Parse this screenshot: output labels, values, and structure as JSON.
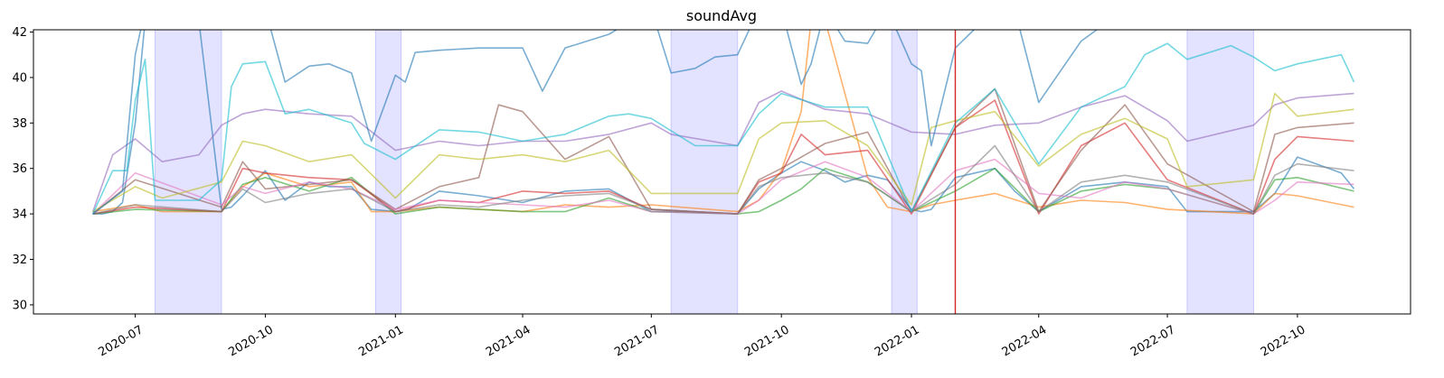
{
  "chart_data": {
    "type": "line",
    "title": "soundAvg",
    "xlabel": "",
    "ylabel": "",
    "xlim": [
      "2020-04-20",
      "2022-12-20"
    ],
    "ylim": [
      29.6,
      42.1
    ],
    "y_ticks": [
      30,
      32,
      34,
      36,
      38,
      40,
      42
    ],
    "x_ticks": [
      "2020-07",
      "2020-10",
      "2021-01",
      "2021-04",
      "2021-07",
      "2021-10",
      "2022-01",
      "2022-04",
      "2022-07",
      "2022-10"
    ],
    "grid": false,
    "legend": "none",
    "shaded_periods": [
      [
        "2020-07-15",
        "2020-08-31"
      ],
      [
        "2020-12-18",
        "2021-01-05"
      ],
      [
        "2021-07-15",
        "2021-08-31"
      ],
      [
        "2021-12-18",
        "2022-01-05"
      ],
      [
        "2022-07-15",
        "2022-08-31"
      ]
    ],
    "vertical_line": "2022-02-01",
    "colors": {
      "shade": "#b8b8ff",
      "vline": "#d62728",
      "axes": "#000000"
    },
    "series": [
      {
        "color": "#1f77b4",
        "dates": [
          "2020-06-01",
          "2020-06-08",
          "2020-06-15",
          "2020-06-22",
          "2020-07-01",
          "2020-07-08",
          "2020-07-20",
          "2020-08-15",
          "2020-08-31",
          "2020-09-07",
          "2020-09-15",
          "2020-10-01",
          "2020-10-15",
          "2020-11-01",
          "2020-11-15",
          "2020-12-01",
          "2020-12-15",
          "2021-01-01",
          "2021-01-10",
          "2021-02-01",
          "2021-03-01",
          "2021-04-01",
          "2021-05-01",
          "2021-06-01",
          "2021-07-01",
          "2021-07-15",
          "2021-08-31",
          "2021-09-15",
          "2021-10-01",
          "2021-10-15",
          "2021-11-01",
          "2021-11-15",
          "2021-12-01",
          "2021-12-15",
          "2022-01-01",
          "2022-01-08",
          "2022-01-15",
          "2022-02-01",
          "2022-03-01",
          "2022-03-15",
          "2022-04-01",
          "2022-05-01",
          "2022-06-01",
          "2022-07-01",
          "2022-07-15",
          "2022-08-31",
          "2022-09-15",
          "2022-10-01",
          "2022-11-01",
          "2022-11-10"
        ],
        "values": [
          34.0,
          34.0,
          34.1,
          34.5,
          38.0,
          42.5,
          42.5,
          42.5,
          34.2,
          34.3,
          34.8,
          35.9,
          34.6,
          35.4,
          35.2,
          35.2,
          34.2,
          34.1,
          34.2,
          35.0,
          34.8,
          34.5,
          35.0,
          35.1,
          34.1,
          34.1,
          34.0,
          35.1,
          35.8,
          36.3,
          35.9,
          35.4,
          35.7,
          35.5,
          34.2,
          34.1,
          34.2,
          35.6,
          36.0,
          35.0,
          34.1,
          35.2,
          35.4,
          35.2,
          34.1,
          34.1,
          34.9,
          36.5,
          35.8,
          35.1
        ]
      },
      {
        "color": "#ff7f0e",
        "dates": [
          "2020-06-01",
          "2020-07-01",
          "2020-07-20",
          "2020-08-31",
          "2020-09-15",
          "2020-10-01",
          "2020-11-01",
          "2020-12-01",
          "2020-12-15",
          "2021-01-01",
          "2021-02-01",
          "2021-03-01",
          "2021-04-01",
          "2021-05-01",
          "2021-06-01",
          "2021-07-01",
          "2021-08-31",
          "2021-09-15",
          "2021-10-01",
          "2021-10-15",
          "2021-10-22",
          "2021-11-01",
          "2021-12-01",
          "2021-12-15",
          "2022-01-01",
          "2022-01-15",
          "2022-02-01",
          "2022-03-01",
          "2022-04-01",
          "2022-05-01",
          "2022-06-01",
          "2022-07-01",
          "2022-08-31",
          "2022-09-15",
          "2022-10-01",
          "2022-11-10"
        ],
        "values": [
          34.1,
          34.4,
          34.1,
          34.1,
          35.2,
          35.8,
          35.2,
          35.4,
          34.1,
          34.1,
          34.3,
          34.2,
          34.1,
          34.4,
          34.3,
          34.4,
          34.1,
          34.6,
          35.9,
          38.5,
          42.5,
          42.5,
          35.6,
          34.3,
          34.1,
          34.4,
          34.6,
          34.9,
          34.3,
          34.6,
          34.5,
          34.2,
          34.0,
          34.9,
          34.8,
          34.3
        ]
      },
      {
        "color": "#2ca02c",
        "dates": [
          "2020-06-01",
          "2020-07-01",
          "2020-08-31",
          "2020-09-15",
          "2020-10-01",
          "2020-11-01",
          "2020-12-01",
          "2021-01-01",
          "2021-02-01",
          "2021-03-01",
          "2021-04-01",
          "2021-05-01",
          "2021-06-01",
          "2021-07-01",
          "2021-08-31",
          "2021-09-15",
          "2021-10-01",
          "2021-10-15",
          "2021-11-01",
          "2021-12-01",
          "2022-01-01",
          "2022-02-01",
          "2022-03-01",
          "2022-04-01",
          "2022-05-01",
          "2022-06-01",
          "2022-07-01",
          "2022-08-31",
          "2022-09-15",
          "2022-10-01",
          "2022-11-10"
        ],
        "values": [
          34.0,
          34.2,
          34.1,
          35.3,
          35.6,
          35.0,
          35.6,
          34.0,
          34.3,
          34.2,
          34.1,
          34.1,
          34.7,
          34.1,
          34.0,
          34.1,
          34.6,
          35.1,
          36.0,
          35.4,
          34.1,
          35.0,
          36.0,
          34.1,
          35.0,
          35.3,
          35.1,
          34.0,
          35.5,
          35.6,
          35.0
        ]
      },
      {
        "color": "#d62728",
        "dates": [
          "2020-06-01",
          "2020-07-01",
          "2020-08-31",
          "2020-09-15",
          "2020-10-01",
          "2020-11-01",
          "2020-12-01",
          "2021-01-01",
          "2021-02-01",
          "2021-03-01",
          "2021-04-01",
          "2021-05-01",
          "2021-06-01",
          "2021-07-01",
          "2021-08-31",
          "2021-09-15",
          "2021-10-01",
          "2021-10-15",
          "2021-11-01",
          "2021-12-01",
          "2022-01-01",
          "2022-02-01",
          "2022-03-01",
          "2022-04-01",
          "2022-05-01",
          "2022-06-01",
          "2022-07-01",
          "2022-08-31",
          "2022-09-15",
          "2022-10-01",
          "2022-11-10"
        ],
        "values": [
          34.0,
          34.3,
          34.1,
          36.0,
          35.8,
          35.6,
          35.5,
          34.1,
          34.6,
          34.5,
          35.0,
          34.9,
          35.0,
          34.2,
          34.0,
          35.4,
          35.8,
          37.5,
          36.6,
          36.8,
          34.0,
          37.8,
          39.0,
          34.0,
          37.0,
          38.0,
          35.5,
          34.0,
          36.4,
          37.4,
          37.2
        ]
      },
      {
        "color": "#9467bd",
        "dates": [
          "2020-06-01",
          "2020-06-15",
          "2020-07-01",
          "2020-07-20",
          "2020-08-15",
          "2020-08-31",
          "2020-09-15",
          "2020-10-01",
          "2020-11-01",
          "2020-12-01",
          "2021-01-01",
          "2021-02-01",
          "2021-03-01",
          "2021-04-01",
          "2021-05-01",
          "2021-06-01",
          "2021-07-01",
          "2021-07-15",
          "2021-08-31",
          "2021-09-15",
          "2021-10-01",
          "2021-11-01",
          "2021-12-01",
          "2022-01-01",
          "2022-02-01",
          "2022-03-01",
          "2022-04-01",
          "2022-05-01",
          "2022-06-01",
          "2022-07-01",
          "2022-07-15",
          "2022-08-31",
          "2022-09-15",
          "2022-10-01",
          "2022-11-10"
        ],
        "values": [
          34.1,
          36.6,
          37.3,
          36.3,
          36.6,
          37.9,
          38.4,
          38.6,
          38.4,
          38.3,
          36.8,
          37.2,
          37.0,
          37.2,
          37.2,
          37.5,
          38.0,
          37.5,
          37.0,
          38.9,
          39.4,
          38.6,
          38.4,
          37.6,
          37.5,
          37.9,
          38.0,
          38.7,
          39.2,
          38.1,
          37.2,
          37.9,
          38.8,
          39.1,
          39.3
        ]
      },
      {
        "color": "#8c564b",
        "dates": [
          "2020-06-01",
          "2020-07-01",
          "2020-08-31",
          "2020-09-15",
          "2020-10-01",
          "2020-11-01",
          "2020-12-01",
          "2021-01-01",
          "2021-02-01",
          "2021-03-01",
          "2021-03-15",
          "2021-04-01",
          "2021-05-01",
          "2021-06-01",
          "2021-07-01",
          "2021-08-31",
          "2021-09-15",
          "2021-10-01",
          "2021-11-01",
          "2021-12-01",
          "2022-01-01",
          "2022-02-01",
          "2022-03-01",
          "2022-04-01",
          "2022-05-01",
          "2022-06-01",
          "2022-07-01",
          "2022-08-31",
          "2022-09-15",
          "2022-10-01",
          "2022-11-10"
        ],
        "values": [
          34.0,
          35.5,
          34.3,
          36.3,
          35.1,
          35.3,
          35.5,
          34.2,
          35.2,
          35.6,
          38.8,
          38.5,
          36.4,
          37.4,
          34.2,
          34.0,
          35.5,
          36.0,
          37.1,
          37.6,
          34.1,
          37.8,
          39.5,
          34.1,
          36.8,
          38.8,
          36.2,
          34.1,
          37.5,
          37.8,
          38.0
        ]
      },
      {
        "color": "#e377c2",
        "dates": [
          "2020-06-01",
          "2020-07-01",
          "2020-08-31",
          "2020-09-15",
          "2020-10-01",
          "2020-11-01",
          "2020-12-01",
          "2021-01-01",
          "2021-02-01",
          "2021-03-01",
          "2021-04-01",
          "2021-05-01",
          "2021-06-01",
          "2021-07-01",
          "2021-08-31",
          "2021-09-15",
          "2021-10-01",
          "2021-11-01",
          "2021-12-01",
          "2022-01-01",
          "2022-02-01",
          "2022-03-01",
          "2022-04-01",
          "2022-05-01",
          "2022-06-01",
          "2022-07-01",
          "2022-08-31",
          "2022-09-15",
          "2022-10-01",
          "2022-11-10"
        ],
        "values": [
          34.0,
          35.8,
          34.4,
          35.2,
          34.9,
          35.4,
          35.1,
          34.2,
          34.6,
          34.5,
          34.4,
          34.3,
          34.6,
          34.1,
          34.0,
          34.6,
          35.5,
          36.3,
          35.6,
          34.1,
          35.9,
          36.4,
          34.9,
          34.7,
          35.4,
          35.1,
          34.0,
          34.6,
          35.4,
          35.3
        ]
      },
      {
        "color": "#7f7f7f",
        "dates": [
          "2020-06-01",
          "2020-07-01",
          "2020-08-31",
          "2020-09-15",
          "2020-10-01",
          "2020-11-01",
          "2020-12-01",
          "2021-01-01",
          "2021-02-01",
          "2021-03-01",
          "2021-04-01",
          "2021-05-01",
          "2021-06-01",
          "2021-07-01",
          "2021-08-31",
          "2021-09-15",
          "2021-10-01",
          "2021-11-01",
          "2021-12-01",
          "2022-01-01",
          "2022-02-01",
          "2022-03-01",
          "2022-04-01",
          "2022-05-01",
          "2022-06-01",
          "2022-07-01",
          "2022-08-31",
          "2022-09-15",
          "2022-10-01",
          "2022-11-10"
        ],
        "values": [
          34.0,
          34.4,
          34.1,
          35.1,
          34.5,
          34.9,
          35.1,
          34.1,
          34.4,
          34.3,
          34.6,
          34.8,
          34.9,
          34.2,
          34.0,
          35.2,
          35.6,
          35.8,
          35.4,
          34.1,
          35.3,
          37.0,
          34.1,
          35.4,
          35.7,
          35.4,
          34.0,
          35.7,
          36.2,
          35.9
        ]
      },
      {
        "color": "#bcbd22",
        "dates": [
          "2020-06-01",
          "2020-07-01",
          "2020-07-20",
          "2020-08-31",
          "2020-09-15",
          "2020-10-01",
          "2020-11-01",
          "2020-12-01",
          "2021-01-01",
          "2021-02-01",
          "2021-03-01",
          "2021-04-01",
          "2021-05-01",
          "2021-06-01",
          "2021-07-01",
          "2021-07-15",
          "2021-08-31",
          "2021-09-15",
          "2021-10-01",
          "2021-11-01",
          "2021-12-01",
          "2022-01-01",
          "2022-01-15",
          "2022-02-01",
          "2022-03-01",
          "2022-04-01",
          "2022-05-01",
          "2022-06-01",
          "2022-07-01",
          "2022-07-15",
          "2022-08-31",
          "2022-09-15",
          "2022-10-01",
          "2022-11-10"
        ],
        "values": [
          34.1,
          35.2,
          34.7,
          35.4,
          37.2,
          37.0,
          36.3,
          36.6,
          34.7,
          36.6,
          36.4,
          36.6,
          36.3,
          36.8,
          34.9,
          34.9,
          34.9,
          37.3,
          38.0,
          38.1,
          37.0,
          34.4,
          37.8,
          38.1,
          38.5,
          36.1,
          37.5,
          38.2,
          37.3,
          35.2,
          35.5,
          39.3,
          38.3,
          38.6
        ]
      },
      {
        "color": "#17becf",
        "dates": [
          "2020-06-01",
          "2020-06-15",
          "2020-06-25",
          "2020-07-01",
          "2020-07-08",
          "2020-07-15",
          "2020-08-15",
          "2020-08-31",
          "2020-09-07",
          "2020-09-15",
          "2020-10-01",
          "2020-10-15",
          "2020-11-01",
          "2020-12-01",
          "2020-12-10",
          "2021-01-01",
          "2021-02-01",
          "2021-03-01",
          "2021-04-01",
          "2021-05-01",
          "2021-06-01",
          "2021-06-15",
          "2021-07-01",
          "2021-08-01",
          "2021-08-31",
          "2021-09-15",
          "2021-10-01",
          "2021-11-01",
          "2021-12-01",
          "2022-01-01",
          "2022-02-01",
          "2022-03-01",
          "2022-04-01",
          "2022-05-01",
          "2022-06-01",
          "2022-06-15",
          "2022-07-01",
          "2022-07-15",
          "2022-08-15",
          "2022-08-31",
          "2022-09-15",
          "2022-10-01",
          "2022-11-01",
          "2022-11-10"
        ],
        "values": [
          34.0,
          35.9,
          35.9,
          39.0,
          40.8,
          34.6,
          34.6,
          35.5,
          39.6,
          40.6,
          40.7,
          38.4,
          38.6,
          38.0,
          37.1,
          36.4,
          37.7,
          37.6,
          37.2,
          37.5,
          38.3,
          38.4,
          38.2,
          37.0,
          37.0,
          38.4,
          39.3,
          38.7,
          38.7,
          34.1,
          38.0,
          39.5,
          36.2,
          38.7,
          39.6,
          41.0,
          41.5,
          40.8,
          41.4,
          40.9,
          40.3,
          40.6,
          41.0,
          39.8
        ]
      },
      {
        "color": "#1f77b4",
        "dates": [
          "2020-06-01",
          "2020-06-22",
          "2020-07-01",
          "2020-07-08",
          "2020-07-20",
          "2020-08-31",
          "2020-09-15",
          "2020-10-01",
          "2020-10-15",
          "2020-11-01",
          "2020-11-15",
          "2020-12-01",
          "2020-12-15",
          "2021-01-01",
          "2021-01-08",
          "2021-01-15",
          "2021-02-01",
          "2021-03-01",
          "2021-04-01",
          "2021-04-15",
          "2021-05-01",
          "2021-06-01",
          "2021-07-01",
          "2021-07-15",
          "2021-08-01",
          "2021-08-15",
          "2021-08-31",
          "2021-09-15",
          "2021-10-01",
          "2021-10-15",
          "2021-10-22",
          "2021-11-01",
          "2021-11-15",
          "2021-12-01",
          "2021-12-15",
          "2022-01-01",
          "2022-01-08",
          "2022-01-15",
          "2022-02-01",
          "2022-03-01",
          "2022-03-15",
          "2022-04-01",
          "2022-05-01",
          "2022-06-01",
          "2022-07-01",
          "2022-08-31",
          "2022-09-15",
          "2022-10-01",
          "2022-11-10"
        ],
        "values": [
          34.0,
          35.0,
          41.0,
          43.0,
          43.0,
          43.0,
          43.0,
          43.0,
          39.8,
          40.5,
          40.6,
          40.2,
          37.2,
          40.1,
          39.8,
          41.1,
          41.2,
          41.3,
          41.3,
          39.4,
          41.3,
          41.9,
          43.0,
          40.2,
          40.4,
          40.9,
          41.0,
          43.0,
          43.0,
          39.7,
          40.6,
          43.0,
          41.6,
          41.5,
          43.0,
          40.6,
          40.3,
          37.0,
          41.3,
          43.0,
          43.0,
          38.9,
          41.6,
          43.0,
          43.0,
          43.0,
          43.0,
          43.0,
          43.0
        ]
      }
    ]
  }
}
